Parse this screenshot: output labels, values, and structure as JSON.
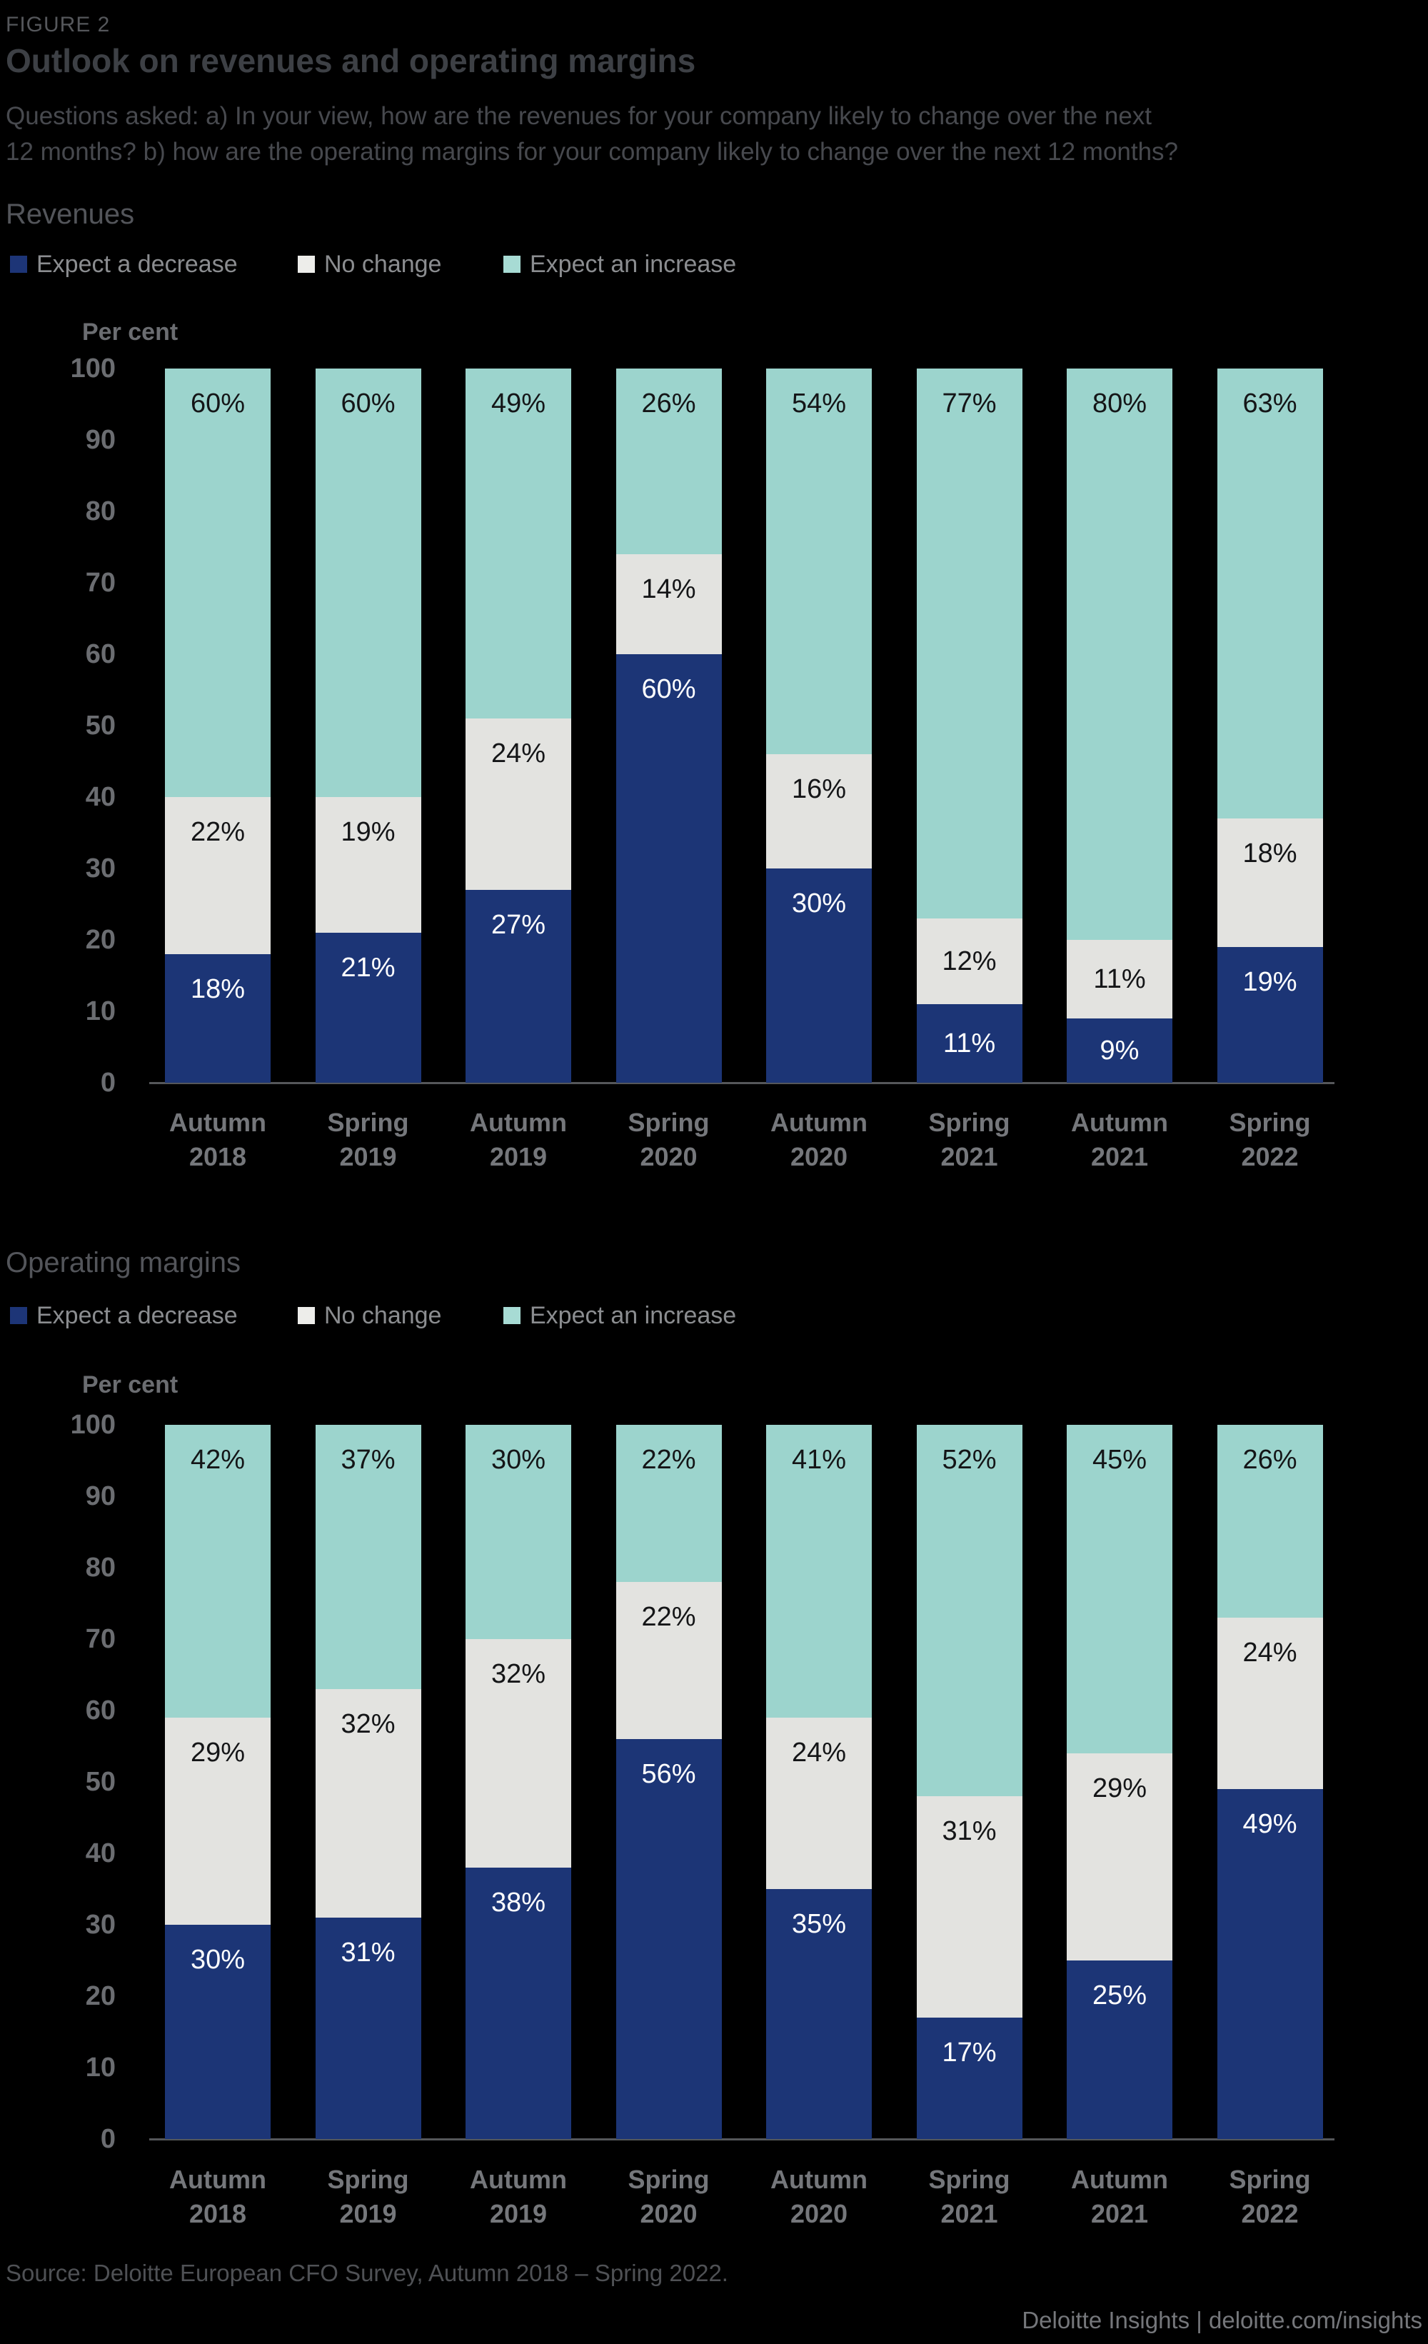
{
  "header": {
    "figure_label": "FIGURE 2",
    "title": "Outlook on revenues and operating margins",
    "subtitle_lines": [
      "Questions asked: a) In your view, how are the revenues for your company likely to change over the next",
      "12 months? b) how are the operating margins for your company likely to change over the next 12 months?"
    ]
  },
  "colors": {
    "background": "#000000",
    "decrease": "#1C3576",
    "no_change": "#E3E3E0",
    "increase": "#9CD4CD",
    "axis_line": "#55575A",
    "tick_text": "#6B6D71",
    "dark_value_label": "#141517",
    "light_value_label": "#FFFFFF"
  },
  "chart_data": [
    {
      "type": "bar",
      "stacked": true,
      "section_title": "Revenues",
      "axis_label": "Per cent",
      "ylim": [
        0,
        100
      ],
      "yticks": [
        100,
        90,
        80,
        70,
        60,
        50,
        40,
        30,
        20,
        10,
        0
      ],
      "grid": false,
      "legend_position": "top",
      "legend": [
        {
          "label": "Expect a decrease",
          "color": "#1D3577"
        },
        {
          "label": "No change",
          "color": "#EDEDEA"
        },
        {
          "label": "Expect an increase",
          "color": "#A7DBD4"
        }
      ],
      "categories": [
        "Autumn 2018",
        "Spring 2019",
        "Autumn 2019",
        "Spring 2020",
        "Autumn 2020",
        "Spring 2021",
        "Autumn 2021",
        "Spring 2022"
      ],
      "series": [
        {
          "name": "Expect a decrease",
          "color": "#1C3576",
          "label_color": "#FFFFFF",
          "values": [
            18,
            21,
            27,
            60,
            30,
            11,
            9,
            19
          ]
        },
        {
          "name": "No change",
          "color": "#E3E3E0",
          "label_color": "#141517",
          "values": [
            22,
            19,
            24,
            14,
            16,
            12,
            11,
            18
          ]
        },
        {
          "name": "Expect an increase",
          "color": "#9CD4CD",
          "label_color": "#141517",
          "values": [
            60,
            60,
            49,
            26,
            54,
            77,
            80,
            63
          ]
        }
      ],
      "value_suffix": "%"
    },
    {
      "type": "bar",
      "stacked": true,
      "section_title": "Operating margins",
      "axis_label": "Per cent",
      "ylim": [
        0,
        100
      ],
      "yticks": [
        100,
        90,
        80,
        70,
        60,
        50,
        40,
        30,
        20,
        10,
        0
      ],
      "grid": false,
      "legend_position": "top",
      "legend": [
        {
          "label": "Expect a decrease",
          "color": "#1D3577"
        },
        {
          "label": "No change",
          "color": "#EDEDEA"
        },
        {
          "label": "Expect an increase",
          "color": "#A7DBD4"
        }
      ],
      "categories": [
        "Autumn 2018",
        "Spring 2019",
        "Autumn 2019",
        "Spring 2020",
        "Autumn 2020",
        "Spring 2021",
        "Autumn 2021",
        "Spring 2022"
      ],
      "series": [
        {
          "name": "Expect a decrease",
          "color": "#1C3576",
          "label_color": "#FFFFFF",
          "values": [
            30,
            31,
            38,
            56,
            35,
            17,
            25,
            49
          ]
        },
        {
          "name": "No change",
          "color": "#E3E3E0",
          "label_color": "#141517",
          "values": [
            29,
            32,
            32,
            22,
            24,
            31,
            29,
            24
          ]
        },
        {
          "name": "Expect an increase",
          "color": "#9CD4CD",
          "label_color": "#141517",
          "values": [
            42,
            37,
            30,
            22,
            41,
            52,
            45,
            26
          ]
        }
      ],
      "value_suffix": "%"
    }
  ],
  "footer": {
    "source": "Source: Deloitte European CFO Survey, Autumn 2018 – Spring 2022.",
    "brand": "Deloitte Insights | deloitte.com/insights"
  }
}
